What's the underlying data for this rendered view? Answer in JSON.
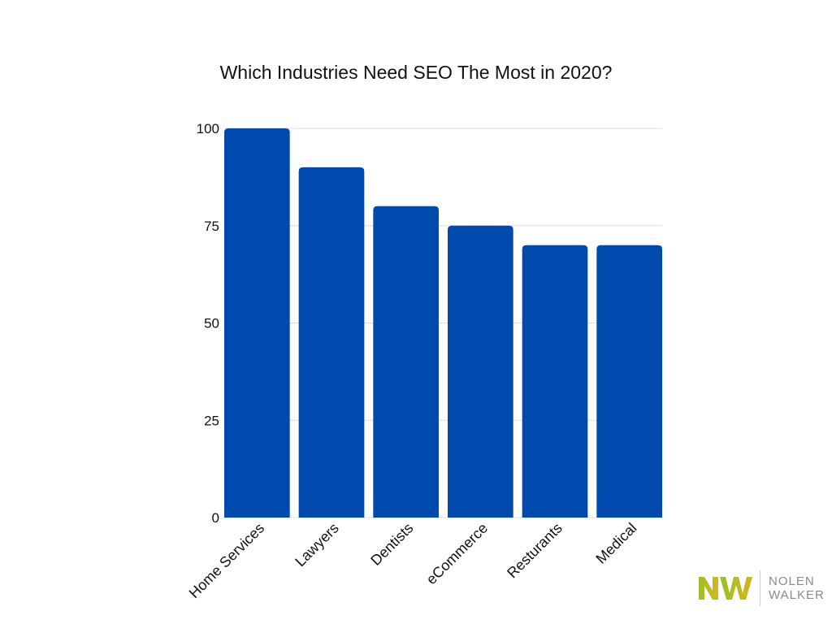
{
  "chart_data": {
    "type": "bar",
    "title": "Which Industries Need SEO The Most in 2020?",
    "categories": [
      "Home Services",
      "Lawyers",
      "Dentists",
      "eCommerce",
      "Resturants",
      "Medical"
    ],
    "values": [
      100,
      90,
      80,
      75,
      70,
      70
    ],
    "ylim": [
      0,
      100
    ],
    "yticks": [
      0,
      25,
      50,
      75,
      100
    ],
    "xlabel": "",
    "ylabel": "",
    "grid": true,
    "bar_color": "#004aad"
  },
  "logo": {
    "line1": "NOLEN",
    "line2": "WALKER",
    "colors": [
      "#9bbf2a",
      "#d6b51c"
    ]
  }
}
